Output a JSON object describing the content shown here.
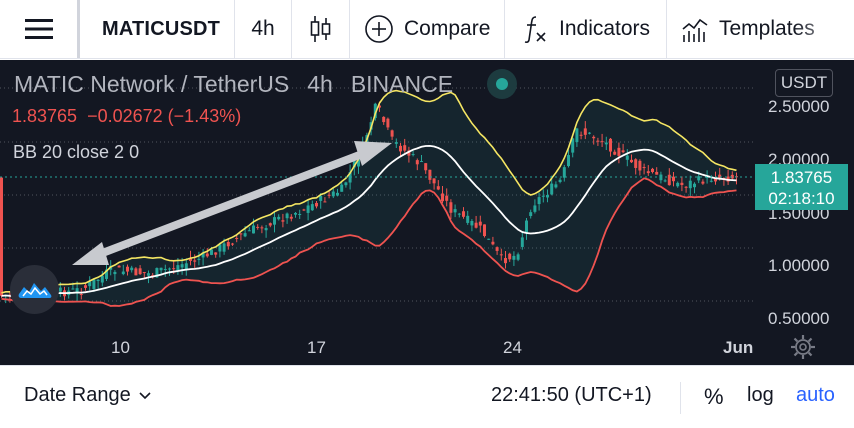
{
  "toolbar": {
    "symbol": "MATICUSDT",
    "interval": "4h",
    "compare_label": "Compare",
    "indicators_label": "Indicators",
    "templates_label": "Templates"
  },
  "legend": {
    "name": "MATIC Network / TetherUS",
    "interval": "4h",
    "exchange": "BINANCE",
    "last": "1.83765",
    "change": "−0.02672",
    "change_pct": "(−1.43%)",
    "indicator": "BB 20 close 2 0"
  },
  "price_scale": {
    "unit": "USDT",
    "ticks": [
      "2.50000",
      "2.00000",
      "1.50000",
      "1.00000",
      "0.50000"
    ],
    "current_price": "1.83765",
    "countdown": "02:18:10"
  },
  "time_scale": {
    "ticks": [
      "10",
      "17",
      "24",
      "Jun"
    ]
  },
  "bottom_bar": {
    "date_range_label": "Date Range",
    "clock": "22:41:50 (UTC+1)",
    "percent_label": "%",
    "log_label": "log",
    "auto_label": "auto"
  },
  "colors": {
    "up": "#26a69a",
    "down": "#ef5350",
    "bb_upper": "#f5e663",
    "bb_basis": "#ffffff",
    "bb_lower": "#ef5350",
    "accent": "#2962ff"
  }
}
